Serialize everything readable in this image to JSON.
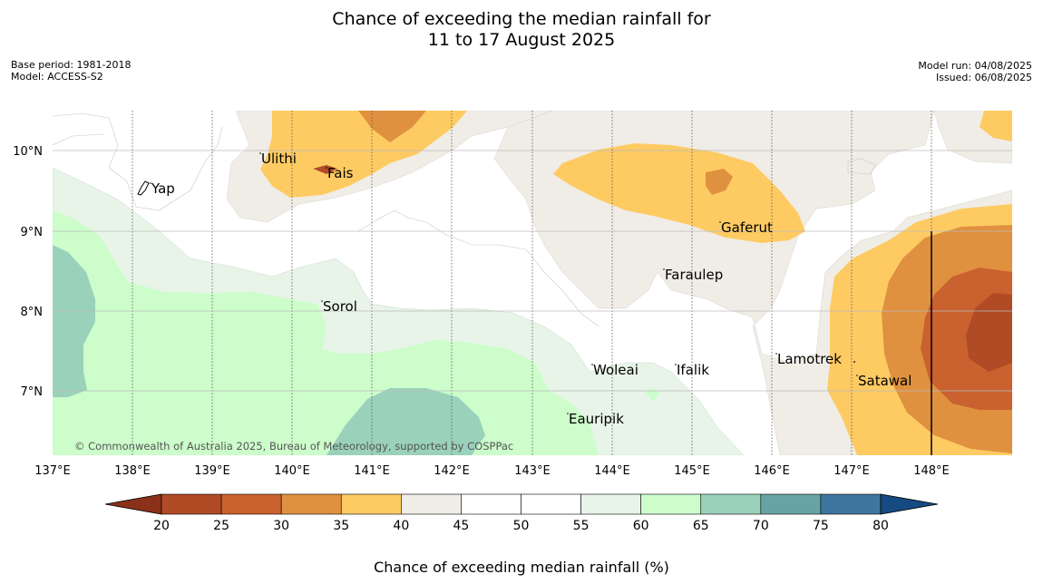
{
  "title": {
    "line1": "Chance of exceeding the median rainfall for",
    "line2": "11 to 17 August 2025"
  },
  "meta": {
    "base_period": "Base period: 1981-2018",
    "model": "Model: ACCESS-S2",
    "model_run": "Model run: 04/08/2025",
    "issued": "Issued: 06/08/2025"
  },
  "map": {
    "lon_labels": [
      "137°E",
      "138°E",
      "139°E",
      "140°E",
      "141°E",
      "142°E",
      "143°E",
      "144°E",
      "145°E",
      "146°E",
      "147°E",
      "148°E"
    ],
    "lat_labels": [
      "10°N",
      "9°N",
      "8°N",
      "7°N"
    ],
    "copyright": "© Commonwealth of Australia 2025, Bureau of Meteorology, supported by COSPPac",
    "places": [
      {
        "name": "Yap"
      },
      {
        "name": "Ulithi"
      },
      {
        "name": "Fais"
      },
      {
        "name": "Gaferut"
      },
      {
        "name": "Faraulep"
      },
      {
        "name": "Sorol"
      },
      {
        "name": "Lamotrek"
      },
      {
        "name": "Woleai"
      },
      {
        "name": "Ifalik"
      },
      {
        "name": "Satawal"
      },
      {
        "name": "Eauripik"
      }
    ]
  },
  "colorbar": {
    "label": "Chance of exceeding median rainfall (%)",
    "ticks": [
      "20",
      "25",
      "30",
      "35",
      "40",
      "45",
      "50",
      "55",
      "60",
      "65",
      "70",
      "75",
      "80"
    ],
    "colors": [
      "#8c3119",
      "#b04b26",
      "#c9622f",
      "#e0913f",
      "#fecb63",
      "#f0ece6",
      "#ffffff",
      "#ffffff",
      "#e8f4e8",
      "#ccfdcb",
      "#9ad1ba",
      "#68a3a4",
      "#3e76a0",
      "#164a82"
    ]
  }
}
